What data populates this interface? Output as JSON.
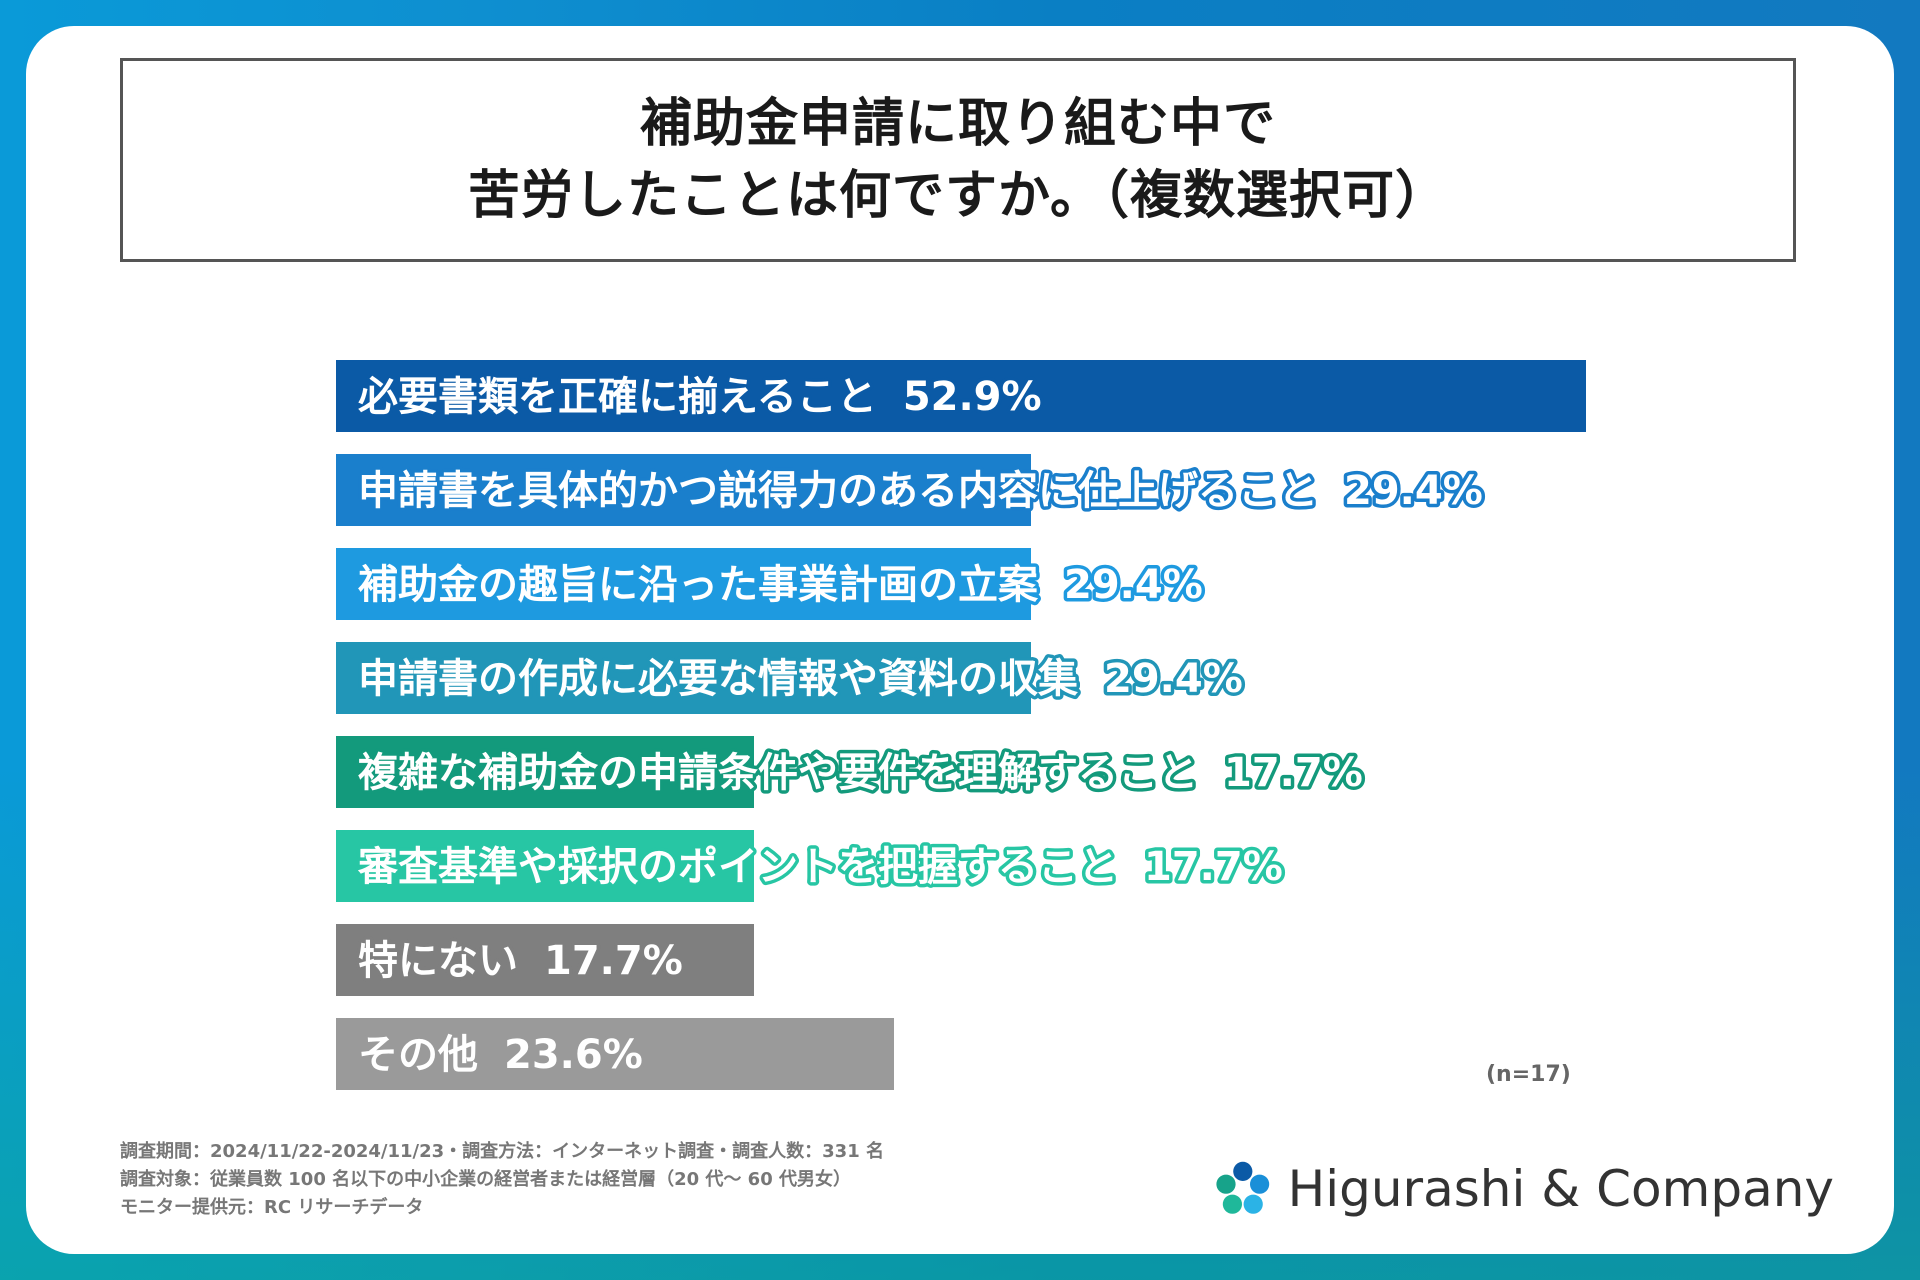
{
  "title": {
    "line1": "補助金申請に取り組む中で",
    "line2": "苦労したことは何ですか。（複数選択可）"
  },
  "chart_data": {
    "type": "bar",
    "orientation": "horizontal",
    "unit": "%",
    "xlim": [
      0,
      52.9
    ],
    "categories": [
      "必要書類を正確に揃えること",
      "申請書を具体的かつ説得力のある内容に仕上げること",
      "補助金の趣旨に沿った事業計画の立案",
      "申請書の作成に必要な情報や資料の収集",
      "複雑な補助金の申請条件や要件を理解すること",
      "審査基準や採択のポイントを把握すること",
      "特にない",
      "その他"
    ],
    "values": [
      52.9,
      29.4,
      29.4,
      29.4,
      17.7,
      17.7,
      17.7,
      23.6
    ],
    "value_labels": [
      "52.9%",
      "29.4%",
      "29.4%",
      "29.4%",
      "17.7%",
      "17.7%",
      "17.7%",
      "23.6%"
    ],
    "colors": [
      "#0b5aa6",
      "#1a7fcc",
      "#1e9ae0",
      "#2196b8",
      "#139a7c",
      "#27c6a4",
      "#7f7f7f",
      "#9a9a9a"
    ],
    "sample_size": "(n=17)"
  },
  "footnotes": {
    "line1": "調査期間：2024/11/22-2024/11/23・調査方法：インターネット調査・調査人数：331 名",
    "line2": "調査対象：従業員数 100 名以下の中小企業の経営者または経営層（20 代〜 60 代男女）",
    "line3": "モニター提供元：RC リサーチデータ"
  },
  "logo": {
    "text": "Higurashi & Company",
    "icon": "flower-logo-icon"
  }
}
